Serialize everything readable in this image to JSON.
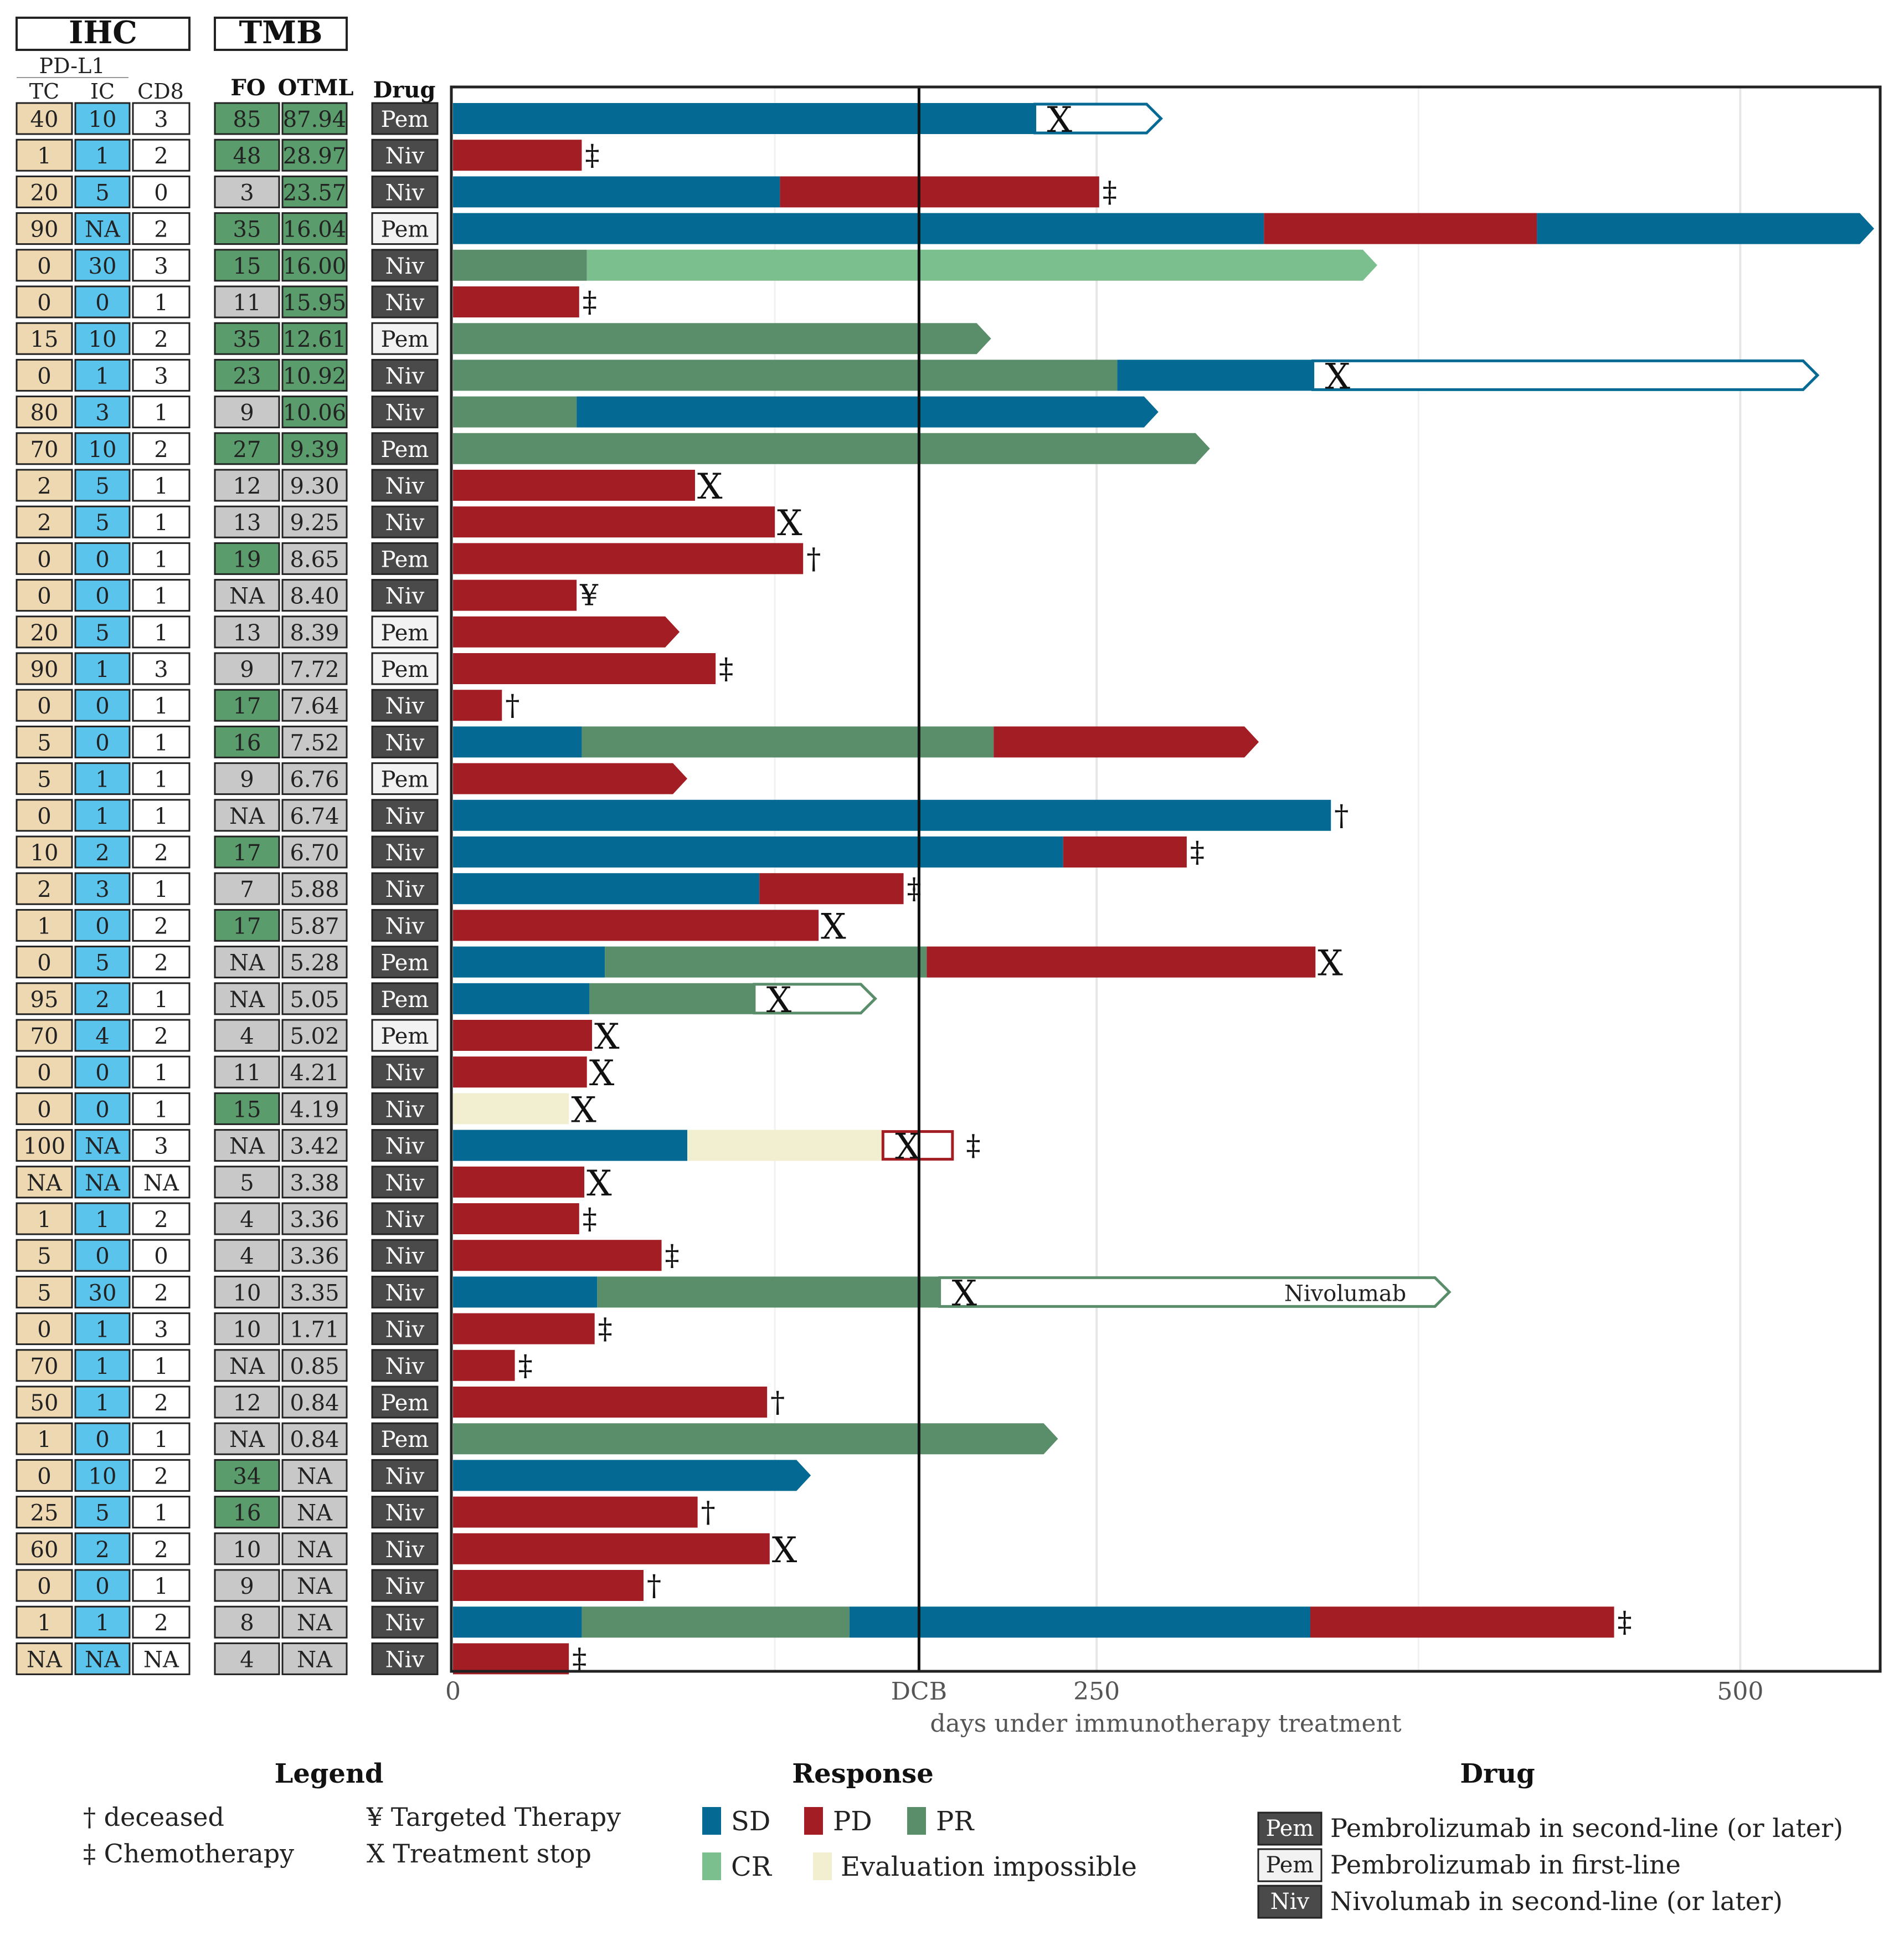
{
  "header": {
    "ihc": "IHC",
    "tmb": "TMB",
    "pdl1": "PD-L1",
    "tc": "TC",
    "ic": "IC",
    "cd8": "CD8",
    "fo": "FO",
    "otml": "OTML",
    "drug": "Drug"
  },
  "colors": {
    "SD": "#046a94",
    "PD": "#a31d24",
    "PR": "#5a8e6a",
    "CR": "#7cbf8e",
    "EI": "#f1efcf",
    "tc_fill": "#eed8b2",
    "ic_fill": "#5bc4ed",
    "cd8_fill": "#ffffff",
    "fo_green": "#5a9c6b",
    "fo_gray": "#c8c8c8",
    "drug_dark": "#4a4a4a",
    "drug_light": "#f2f2f2"
  },
  "chart_data": {
    "type": "bar",
    "xlabel": "days under immunotherapy treatment",
    "xlim": [
      0,
      555
    ],
    "xticks": [
      {
        "v": 0,
        "label": "0"
      },
      {
        "v": 181,
        "label": "DCB"
      },
      {
        "v": 250,
        "label": "250"
      },
      {
        "v": 500,
        "label": "500"
      }
    ],
    "dcb_day": 181,
    "grid": true,
    "rows": [
      {
        "tc": "40",
        "ic": "10",
        "cd8": "3",
        "fo": "85",
        "otml": "87.94",
        "drug": "Pem",
        "drug_style": "dark",
        "fo_color": "green",
        "otml_color": "green",
        "segments": [
          {
            "r": "SD",
            "s": 0,
            "e": 226
          }
        ],
        "open": {
          "s": 226,
          "e": 275,
          "c": "SD"
        },
        "x_at": 232
      },
      {
        "tc": "1",
        "ic": "1",
        "cd8": "2",
        "fo": "48",
        "otml": "28.97",
        "drug": "Niv",
        "drug_style": "dark",
        "fo_color": "green",
        "otml_color": "green",
        "segments": [
          {
            "r": "PD",
            "s": 0,
            "e": 50
          }
        ],
        "sym": "‡"
      },
      {
        "tc": "20",
        "ic": "5",
        "cd8": "0",
        "fo": "3",
        "otml": "23.57",
        "drug": "Niv",
        "drug_style": "dark",
        "fo_color": "gray",
        "otml_color": "green",
        "segments": [
          {
            "r": "SD",
            "s": 0,
            "e": 127
          },
          {
            "r": "PD",
            "s": 127,
            "e": 251
          }
        ],
        "sym": "‡"
      },
      {
        "tc": "90",
        "ic": "NA",
        "cd8": "2",
        "fo": "35",
        "otml": "16.04",
        "drug": "Pem",
        "drug_style": "light",
        "fo_color": "green",
        "otml_color": "green",
        "segments": [
          {
            "r": "SD",
            "s": 0,
            "e": 315
          },
          {
            "r": "PD",
            "s": 315,
            "e": 421
          },
          {
            "r": "SD",
            "s": 421,
            "e": 552
          }
        ],
        "arrow": true
      },
      {
        "tc": "0",
        "ic": "30",
        "cd8": "3",
        "fo": "15",
        "otml": "16.00",
        "drug": "Niv",
        "drug_style": "dark",
        "fo_color": "green",
        "otml_color": "green",
        "segments": [
          {
            "r": "PR",
            "s": 0,
            "e": 52
          },
          {
            "r": "CR",
            "s": 52,
            "e": 359
          }
        ],
        "arrow": true
      },
      {
        "tc": "0",
        "ic": "0",
        "cd8": "1",
        "fo": "11",
        "otml": "15.95",
        "drug": "Niv",
        "drug_style": "dark",
        "fo_color": "gray",
        "otml_color": "green",
        "segments": [
          {
            "r": "PD",
            "s": 0,
            "e": 49
          }
        ],
        "sym": "‡"
      },
      {
        "tc": "15",
        "ic": "10",
        "cd8": "2",
        "fo": "35",
        "otml": "12.61",
        "drug": "Pem",
        "drug_style": "light",
        "fo_color": "green",
        "otml_color": "green",
        "segments": [
          {
            "r": "PR",
            "s": 0,
            "e": 209
          }
        ],
        "arrow": true
      },
      {
        "tc": "0",
        "ic": "1",
        "cd8": "3",
        "fo": "23",
        "otml": "10.92",
        "drug": "Niv",
        "drug_style": "dark",
        "fo_color": "green",
        "otml_color": "green",
        "segments": [
          {
            "r": "PR",
            "s": 0,
            "e": 258
          },
          {
            "r": "SD",
            "s": 258,
            "e": 334
          }
        ],
        "open": {
          "s": 334,
          "e": 530,
          "c": "SD"
        },
        "x_at": 340
      },
      {
        "tc": "80",
        "ic": "3",
        "cd8": "1",
        "fo": "9",
        "otml": "10.06",
        "drug": "Niv",
        "drug_style": "dark",
        "fo_color": "gray",
        "otml_color": "green",
        "segments": [
          {
            "r": "PR",
            "s": 0,
            "e": 48
          },
          {
            "r": "SD",
            "s": 48,
            "e": 274
          }
        ],
        "arrow": true
      },
      {
        "tc": "70",
        "ic": "10",
        "cd8": "2",
        "fo": "27",
        "otml": "9.39",
        "drug": "Pem",
        "drug_style": "dark",
        "fo_color": "green",
        "otml_color": "green",
        "segments": [
          {
            "r": "PR",
            "s": 0,
            "e": 294
          }
        ],
        "arrow": true
      },
      {
        "tc": "2",
        "ic": "5",
        "cd8": "1",
        "fo": "12",
        "otml": "9.30",
        "drug": "Niv",
        "drug_style": "dark",
        "fo_color": "gray",
        "otml_color": "gray",
        "segments": [
          {
            "r": "PD",
            "s": 0,
            "e": 94
          }
        ],
        "sym": "X"
      },
      {
        "tc": "2",
        "ic": "5",
        "cd8": "1",
        "fo": "13",
        "otml": "9.25",
        "drug": "Niv",
        "drug_style": "dark",
        "fo_color": "gray",
        "otml_color": "gray",
        "segments": [
          {
            "r": "PD",
            "s": 0,
            "e": 125
          }
        ],
        "sym": "X"
      },
      {
        "tc": "0",
        "ic": "0",
        "cd8": "1",
        "fo": "19",
        "otml": "8.65",
        "drug": "Pem",
        "drug_style": "dark",
        "fo_color": "green",
        "otml_color": "gray",
        "segments": [
          {
            "r": "PD",
            "s": 0,
            "e": 136
          }
        ],
        "sym": "†"
      },
      {
        "tc": "0",
        "ic": "0",
        "cd8": "1",
        "fo": "NA",
        "otml": "8.40",
        "drug": "Niv",
        "drug_style": "dark",
        "fo_color": "gray",
        "otml_color": "gray",
        "segments": [
          {
            "r": "PD",
            "s": 0,
            "e": 48
          }
        ],
        "sym": "¥"
      },
      {
        "tc": "20",
        "ic": "5",
        "cd8": "1",
        "fo": "13",
        "otml": "8.39",
        "drug": "Pem",
        "drug_style": "light",
        "fo_color": "gray",
        "otml_color": "gray",
        "segments": [
          {
            "r": "PD",
            "s": 0,
            "e": 88
          }
        ],
        "arrow": true
      },
      {
        "tc": "90",
        "ic": "1",
        "cd8": "3",
        "fo": "9",
        "otml": "7.72",
        "drug": "Pem",
        "drug_style": "light",
        "fo_color": "gray",
        "otml_color": "gray",
        "segments": [
          {
            "r": "PD",
            "s": 0,
            "e": 102
          }
        ],
        "sym": "‡"
      },
      {
        "tc": "0",
        "ic": "0",
        "cd8": "1",
        "fo": "17",
        "otml": "7.64",
        "drug": "Niv",
        "drug_style": "dark",
        "fo_color": "green",
        "otml_color": "gray",
        "segments": [
          {
            "r": "PD",
            "s": 0,
            "e": 19
          }
        ],
        "sym": "†"
      },
      {
        "tc": "5",
        "ic": "0",
        "cd8": "1",
        "fo": "16",
        "otml": "7.52",
        "drug": "Niv",
        "drug_style": "dark",
        "fo_color": "green",
        "otml_color": "gray",
        "segments": [
          {
            "r": "SD",
            "s": 0,
            "e": 50
          },
          {
            "r": "PR",
            "s": 50,
            "e": 210
          },
          {
            "r": "PD",
            "s": 210,
            "e": 313
          }
        ],
        "arrow": true
      },
      {
        "tc": "5",
        "ic": "1",
        "cd8": "1",
        "fo": "9",
        "otml": "6.76",
        "drug": "Pem",
        "drug_style": "light",
        "fo_color": "gray",
        "otml_color": "gray",
        "segments": [
          {
            "r": "PD",
            "s": 0,
            "e": 91
          }
        ],
        "arrow": true
      },
      {
        "tc": "0",
        "ic": "1",
        "cd8": "1",
        "fo": "NA",
        "otml": "6.74",
        "drug": "Niv",
        "drug_style": "dark",
        "fo_color": "gray",
        "otml_color": "gray",
        "segments": [
          {
            "r": "SD",
            "s": 0,
            "e": 341
          }
        ],
        "sym": "†"
      },
      {
        "tc": "10",
        "ic": "2",
        "cd8": "2",
        "fo": "17",
        "otml": "6.70",
        "drug": "Niv",
        "drug_style": "dark",
        "fo_color": "green",
        "otml_color": "gray",
        "segments": [
          {
            "r": "SD",
            "s": 0,
            "e": 237
          },
          {
            "r": "PD",
            "s": 237,
            "e": 285
          }
        ],
        "sym": "‡"
      },
      {
        "tc": "2",
        "ic": "3",
        "cd8": "1",
        "fo": "7",
        "otml": "5.88",
        "drug": "Niv",
        "drug_style": "dark",
        "fo_color": "gray",
        "otml_color": "gray",
        "segments": [
          {
            "r": "SD",
            "s": 0,
            "e": 119
          },
          {
            "r": "PD",
            "s": 119,
            "e": 175
          }
        ],
        "sym": "‡"
      },
      {
        "tc": "1",
        "ic": "0",
        "cd8": "2",
        "fo": "17",
        "otml": "5.87",
        "drug": "Niv",
        "drug_style": "dark",
        "fo_color": "green",
        "otml_color": "gray",
        "segments": [
          {
            "r": "PD",
            "s": 0,
            "e": 142
          }
        ],
        "sym": "X"
      },
      {
        "tc": "0",
        "ic": "5",
        "cd8": "2",
        "fo": "NA",
        "otml": "5.28",
        "drug": "Pem",
        "drug_style": "dark",
        "fo_color": "gray",
        "otml_color": "gray",
        "segments": [
          {
            "r": "SD",
            "s": 0,
            "e": 59
          },
          {
            "r": "PR",
            "s": 59,
            "e": 184
          },
          {
            "r": "PD",
            "s": 184,
            "e": 335
          }
        ],
        "sym": "X"
      },
      {
        "tc": "95",
        "ic": "2",
        "cd8": "1",
        "fo": "NA",
        "otml": "5.05",
        "drug": "Pem",
        "drug_style": "dark",
        "fo_color": "gray",
        "otml_color": "gray",
        "segments": [
          {
            "r": "SD",
            "s": 0,
            "e": 53
          },
          {
            "r": "PR",
            "s": 53,
            "e": 117
          }
        ],
        "open": {
          "s": 117,
          "e": 164,
          "c": "PR"
        },
        "x_at": 123
      },
      {
        "tc": "70",
        "ic": "4",
        "cd8": "2",
        "fo": "4",
        "otml": "5.02",
        "drug": "Pem",
        "drug_style": "light",
        "fo_color": "gray",
        "otml_color": "gray",
        "segments": [
          {
            "r": "PD",
            "s": 0,
            "e": 54
          }
        ],
        "sym": "X"
      },
      {
        "tc": "0",
        "ic": "0",
        "cd8": "1",
        "fo": "11",
        "otml": "4.21",
        "drug": "Niv",
        "drug_style": "dark",
        "fo_color": "gray",
        "otml_color": "gray",
        "segments": [
          {
            "r": "PD",
            "s": 0,
            "e": 52
          }
        ],
        "sym": "X"
      },
      {
        "tc": "0",
        "ic": "0",
        "cd8": "1",
        "fo": "15",
        "otml": "4.19",
        "drug": "Niv",
        "drug_style": "dark",
        "fo_color": "green",
        "otml_color": "gray",
        "segments": [
          {
            "r": "EI",
            "s": 0,
            "e": 45
          }
        ],
        "sym": "X"
      },
      {
        "tc": "100",
        "ic": "NA",
        "cd8": "3",
        "fo": "NA",
        "otml": "3.42",
        "drug": "Niv",
        "drug_style": "dark",
        "fo_color": "gray",
        "otml_color": "gray",
        "segments": [
          {
            "r": "SD",
            "s": 0,
            "e": 91
          },
          {
            "r": "EI",
            "s": 91,
            "e": 167
          }
        ],
        "box": {
          "s": 167,
          "e": 194,
          "c": "PD"
        },
        "x_at": 173,
        "sym": "‡",
        "sym_at": 198
      },
      {
        "tc": "NA",
        "ic": "NA",
        "cd8": "NA",
        "fo": "5",
        "otml": "3.38",
        "drug": "Niv",
        "drug_style": "dark",
        "fo_color": "gray",
        "otml_color": "gray",
        "segments": [
          {
            "r": "PD",
            "s": 0,
            "e": 51
          }
        ],
        "sym": "X"
      },
      {
        "tc": "1",
        "ic": "1",
        "cd8": "2",
        "fo": "4",
        "otml": "3.36",
        "drug": "Niv",
        "drug_style": "dark",
        "fo_color": "gray",
        "otml_color": "gray",
        "segments": [
          {
            "r": "PD",
            "s": 0,
            "e": 49
          }
        ],
        "sym": "‡"
      },
      {
        "tc": "5",
        "ic": "0",
        "cd8": "0",
        "fo": "4",
        "otml": "3.36",
        "drug": "Niv",
        "drug_style": "dark",
        "fo_color": "gray",
        "otml_color": "gray",
        "segments": [
          {
            "r": "PD",
            "s": 0,
            "e": 81
          }
        ],
        "sym": "‡"
      },
      {
        "tc": "5",
        "ic": "30",
        "cd8": "2",
        "fo": "10",
        "otml": "3.35",
        "drug": "Niv",
        "drug_style": "dark",
        "fo_color": "gray",
        "otml_color": "gray",
        "segments": [
          {
            "r": "SD",
            "s": 0,
            "e": 56
          },
          {
            "r": "PR",
            "s": 56,
            "e": 189
          }
        ],
        "open": {
          "s": 189,
          "e": 387,
          "c": "PR"
        },
        "x_at": 195,
        "note": "Nivolumab",
        "note_at": 322
      },
      {
        "tc": "0",
        "ic": "1",
        "cd8": "3",
        "fo": "10",
        "otml": "1.71",
        "drug": "Niv",
        "drug_style": "dark",
        "fo_color": "gray",
        "otml_color": "gray",
        "segments": [
          {
            "r": "PD",
            "s": 0,
            "e": 55
          }
        ],
        "sym": "‡"
      },
      {
        "tc": "70",
        "ic": "1",
        "cd8": "1",
        "fo": "NA",
        "otml": "0.85",
        "drug": "Niv",
        "drug_style": "dark",
        "fo_color": "gray",
        "otml_color": "gray",
        "segments": [
          {
            "r": "PD",
            "s": 0,
            "e": 24
          }
        ],
        "sym": "‡"
      },
      {
        "tc": "50",
        "ic": "1",
        "cd8": "2",
        "fo": "12",
        "otml": "0.84",
        "drug": "Pem",
        "drug_style": "dark",
        "fo_color": "gray",
        "otml_color": "gray",
        "segments": [
          {
            "r": "PD",
            "s": 0,
            "e": 122
          }
        ],
        "sym": "†"
      },
      {
        "tc": "1",
        "ic": "0",
        "cd8": "1",
        "fo": "NA",
        "otml": "0.84",
        "drug": "Pem",
        "drug_style": "dark",
        "fo_color": "gray",
        "otml_color": "gray",
        "segments": [
          {
            "r": "PR",
            "s": 0,
            "e": 235
          }
        ],
        "arrow": true
      },
      {
        "tc": "0",
        "ic": "10",
        "cd8": "2",
        "fo": "34",
        "otml": "NA",
        "drug": "Niv",
        "drug_style": "dark",
        "fo_color": "green",
        "otml_color": "gray",
        "segments": [
          {
            "r": "SD",
            "s": 0,
            "e": 139
          }
        ],
        "arrow": true
      },
      {
        "tc": "25",
        "ic": "5",
        "cd8": "1",
        "fo": "16",
        "otml": "NA",
        "drug": "Niv",
        "drug_style": "dark",
        "fo_color": "green",
        "otml_color": "gray",
        "segments": [
          {
            "r": "PD",
            "s": 0,
            "e": 95
          }
        ],
        "sym": "†"
      },
      {
        "tc": "60",
        "ic": "2",
        "cd8": "2",
        "fo": "10",
        "otml": "NA",
        "drug": "Niv",
        "drug_style": "dark",
        "fo_color": "gray",
        "otml_color": "gray",
        "segments": [
          {
            "r": "PD",
            "s": 0,
            "e": 123
          }
        ],
        "sym": "X"
      },
      {
        "tc": "0",
        "ic": "0",
        "cd8": "1",
        "fo": "9",
        "otml": "NA",
        "drug": "Niv",
        "drug_style": "dark",
        "fo_color": "gray",
        "otml_color": "gray",
        "segments": [
          {
            "r": "PD",
            "s": 0,
            "e": 74
          }
        ],
        "sym": "†"
      },
      {
        "tc": "1",
        "ic": "1",
        "cd8": "2",
        "fo": "8",
        "otml": "NA",
        "drug": "Niv",
        "drug_style": "dark",
        "fo_color": "gray",
        "otml_color": "gray",
        "segments": [
          {
            "r": "SD",
            "s": 0,
            "e": 50
          },
          {
            "r": "PR",
            "s": 50,
            "e": 154
          },
          {
            "r": "SD",
            "s": 154,
            "e": 333
          },
          {
            "r": "PD",
            "s": 333,
            "e": 451
          }
        ],
        "sym": "‡"
      },
      {
        "tc": "NA",
        "ic": "NA",
        "cd8": "NA",
        "fo": "4",
        "otml": "NA",
        "drug": "Niv",
        "drug_style": "dark",
        "fo_color": "gray",
        "otml_color": "gray",
        "segments": [
          {
            "r": "PD",
            "s": 0,
            "e": 45
          }
        ],
        "sym": "‡"
      }
    ]
  },
  "legend": {
    "title": "Legend",
    "deceased": "† deceased",
    "chemo": "‡ Chemotherapy",
    "targeted": "¥ Targeted Therapy",
    "stop": "X Treatment stop"
  },
  "response_legend": {
    "title": "Response",
    "sd": "SD",
    "pd": "PD",
    "pr": "PR",
    "cr": "CR",
    "ei": "Evaluation impossible"
  },
  "drug_legend": {
    "title": "Drug",
    "pem_dark_tag": "Pem",
    "pem_dark_text": "Pembrolizumab in second-line (or later)",
    "pem_light_tag": "Pem",
    "pem_light_text": "Pembrolizumab in first-line",
    "niv_tag": "Niv",
    "niv_text": "Nivolumab in second-line (or later)"
  }
}
